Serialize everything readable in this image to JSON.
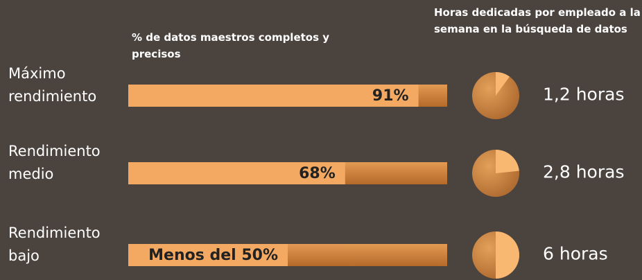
{
  "chart_data": {
    "type": "bar",
    "orientation": "horizontal",
    "title": "% de datos maestros completos y precisos",
    "categories": [
      "Máximo rendimiento",
      "Rendimiento medio",
      "Rendimiento bajo"
    ],
    "values": [
      91,
      68,
      50
    ],
    "value_labels": [
      "91%",
      "68%",
      "Menos del 50%"
    ],
    "color": "#f4a962",
    "track_color": "#c97b36",
    "xlim": [
      0,
      100
    ],
    "hours": {
      "type": "pie",
      "title": "Horas dedicadas por empleado a la semana en la búsqueda de datos",
      "values": [
        1.2,
        2.8,
        6
      ],
      "value_labels": [
        "1,2 horas",
        "2,8 horas",
        "6 horas"
      ],
      "color": "#f8b872",
      "base_color": "#c98238"
    }
  }
}
